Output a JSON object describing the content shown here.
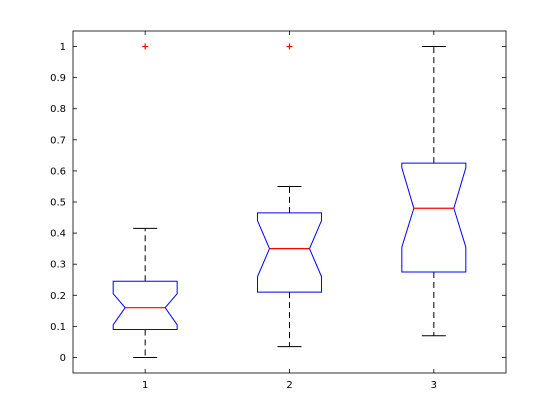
{
  "chart_data": {
    "type": "boxplot",
    "notched": true,
    "categories": [
      "1",
      "2",
      "3"
    ],
    "ylim": [
      -0.05,
      1.05
    ],
    "yticks": [
      "0",
      "0.1",
      "0.2",
      "0.3",
      "0.4",
      "0.5",
      "0.6",
      "0.7",
      "0.8",
      "0.9",
      "1"
    ],
    "grid": false,
    "boxes": [
      {
        "category": "1",
        "whisker_low": 0.0,
        "q1": 0.09,
        "median": 0.16,
        "q3": 0.245,
        "whisker_high": 0.415,
        "notch_low": 0.105,
        "notch_high": 0.205,
        "outliers": [
          1.0
        ]
      },
      {
        "category": "2",
        "whisker_low": 0.035,
        "q1": 0.21,
        "median": 0.35,
        "q3": 0.465,
        "whisker_high": 0.55,
        "notch_low": 0.26,
        "notch_high": 0.44,
        "outliers": [
          1.0
        ]
      },
      {
        "category": "3",
        "whisker_low": 0.07,
        "q1": 0.275,
        "median": 0.48,
        "q3": 0.625,
        "whisker_high": 1.0,
        "notch_low": 0.355,
        "notch_high": 0.61,
        "outliers": []
      }
    ],
    "colors": {
      "box": "#0000ff",
      "median": "#ff0000",
      "whisker": "#000000",
      "outlier": "#ff0000",
      "axes": "#000000"
    }
  }
}
